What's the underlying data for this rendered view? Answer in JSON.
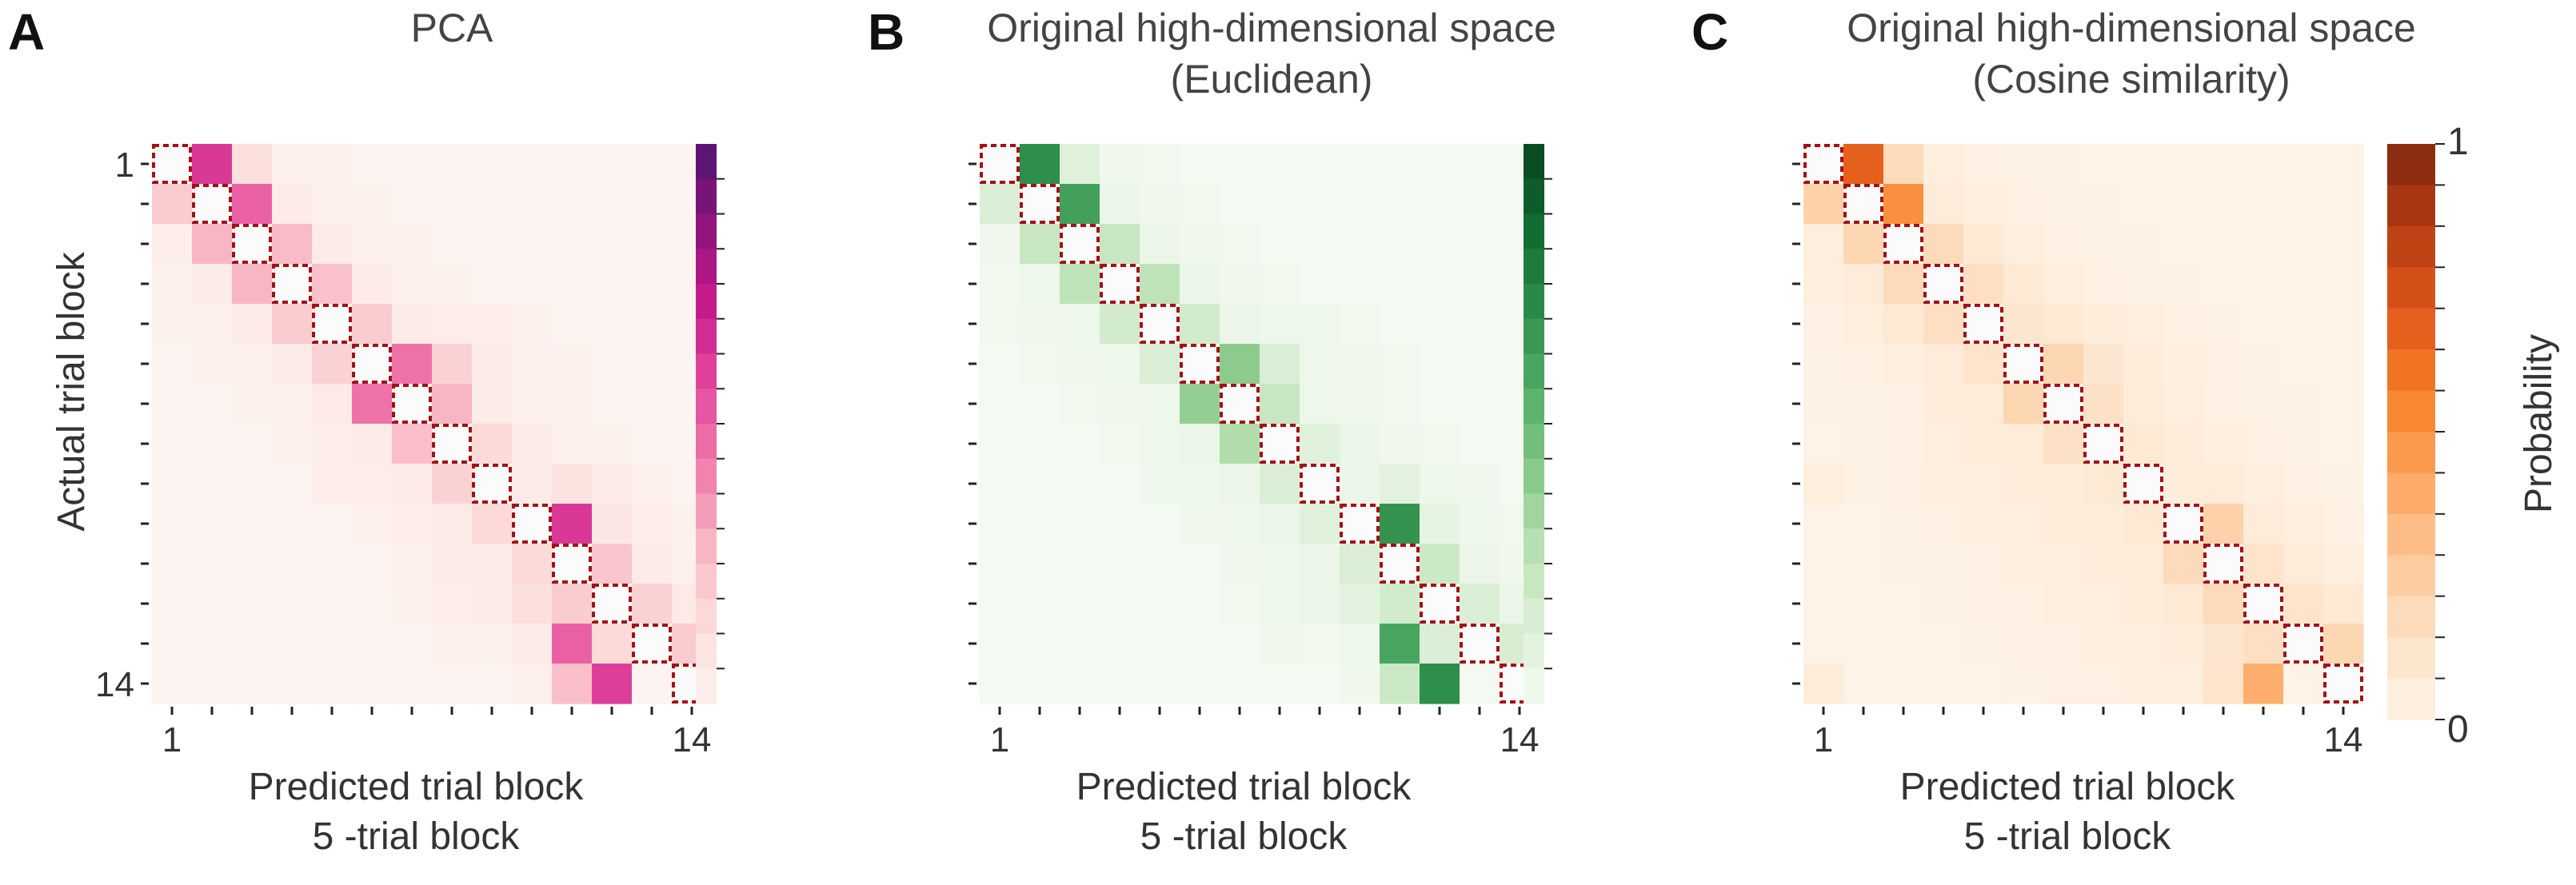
{
  "figure": {
    "ylabel": "Actual  trial block",
    "colorbar_label": "Probability",
    "colorbar_ticks": [
      "1",
      "0"
    ]
  },
  "chart_data": [
    {
      "type": "heatmap",
      "panel": "A",
      "title": [
        "PCA"
      ],
      "xlabel": [
        "Predicted trial block",
        "5 -trial block"
      ],
      "ylabel": "Actual  trial block",
      "x_tick_labels": [
        "1",
        "14"
      ],
      "y_tick_labels": [
        "1",
        "14"
      ],
      "n": 14,
      "vmin": 0,
      "vmax": 1,
      "colormap": [
        "#fdf3f0",
        "#fcdcd9",
        "#f8b4c3",
        "#f07aaa",
        "#e2479d",
        "#c71b8a",
        "#8e137c",
        "#4f1770"
      ],
      "diagonal_marker_color": "#a50f15",
      "matrix": [
        [
          0,
          0.62,
          0.12,
          0.02,
          0.01,
          0,
          0,
          0,
          0,
          0,
          0,
          0,
          0,
          0
        ],
        [
          0.2,
          0,
          0.5,
          0.05,
          0.02,
          0.01,
          0,
          0,
          0,
          0,
          0,
          0,
          0,
          0
        ],
        [
          0.03,
          0.28,
          0,
          0.26,
          0.05,
          0.02,
          0.01,
          0,
          0,
          0,
          0,
          0,
          0,
          0
        ],
        [
          0.01,
          0.05,
          0.28,
          0,
          0.24,
          0.05,
          0.02,
          0.01,
          0,
          0,
          0,
          0,
          0,
          0
        ],
        [
          0.01,
          0.02,
          0.05,
          0.2,
          0,
          0.2,
          0.05,
          0.04,
          0.04,
          0.01,
          0,
          0,
          0,
          0
        ],
        [
          0,
          0.01,
          0.02,
          0.05,
          0.18,
          0,
          0.45,
          0.18,
          0.05,
          0.02,
          0.01,
          0,
          0,
          0
        ],
        [
          0,
          0,
          0.01,
          0.02,
          0.06,
          0.45,
          0,
          0.28,
          0.05,
          0.02,
          0.01,
          0,
          0,
          0
        ],
        [
          0,
          0,
          0,
          0.01,
          0.04,
          0.05,
          0.25,
          0,
          0.15,
          0.05,
          0.02,
          0.01,
          0,
          0
        ],
        [
          0,
          0,
          0,
          0,
          0.03,
          0.04,
          0.05,
          0.18,
          0,
          0.05,
          0.1,
          0.05,
          0.02,
          0
        ],
        [
          0,
          0,
          0,
          0,
          0,
          0.02,
          0.04,
          0.05,
          0.15,
          0,
          0.62,
          0.08,
          0.03,
          0.01
        ],
        [
          0,
          0,
          0,
          0,
          0,
          0,
          0.02,
          0.05,
          0.05,
          0.15,
          0,
          0.22,
          0.05,
          0.02
        ],
        [
          0,
          0,
          0,
          0,
          0,
          0,
          0.01,
          0.04,
          0.05,
          0.12,
          0.2,
          0,
          0.18,
          0.06
        ],
        [
          0,
          0,
          0,
          0,
          0,
          0,
          0,
          0.02,
          0.01,
          0.05,
          0.5,
          0.15,
          0,
          0.2
        ],
        [
          0,
          0,
          0,
          0,
          0,
          0,
          0,
          0,
          0,
          0.02,
          0.25,
          0.6,
          0,
          0
        ]
      ]
    },
    {
      "type": "heatmap",
      "panel": "B",
      "title": [
        "Original high-dimensional space",
        "(Euclidean)"
      ],
      "xlabel": [
        "Predicted trial block",
        "5 -trial block"
      ],
      "x_tick_labels": [
        "1",
        "14"
      ],
      "n": 14,
      "vmin": 0,
      "vmax": 1,
      "colormap": [
        "#f3faf1",
        "#dcefd7",
        "#b5dfae",
        "#82c683",
        "#4fab65",
        "#2a8b48",
        "#10692f",
        "#0a441f"
      ],
      "diagonal_marker_color": "#a50f15",
      "matrix": [
        [
          0,
          0.7,
          0.12,
          0.02,
          0.01,
          0,
          0,
          0,
          0,
          0,
          0,
          0,
          0,
          0
        ],
        [
          0.15,
          0,
          0.62,
          0.05,
          0.02,
          0.01,
          0,
          0,
          0,
          0,
          0,
          0,
          0,
          0
        ],
        [
          0.02,
          0.22,
          0,
          0.22,
          0.05,
          0.02,
          0.01,
          0,
          0,
          0,
          0,
          0,
          0,
          0
        ],
        [
          0.01,
          0.04,
          0.25,
          0,
          0.25,
          0.05,
          0.02,
          0.01,
          0,
          0,
          0,
          0,
          0,
          0
        ],
        [
          0.01,
          0.02,
          0.04,
          0.18,
          0,
          0.18,
          0.05,
          0.04,
          0.04,
          0.01,
          0,
          0,
          0,
          0
        ],
        [
          0,
          0.01,
          0.02,
          0.04,
          0.15,
          0,
          0.4,
          0.15,
          0.04,
          0.02,
          0.01,
          0,
          0,
          0
        ],
        [
          0,
          0,
          0.01,
          0.02,
          0.04,
          0.38,
          0,
          0.22,
          0.04,
          0.02,
          0.01,
          0,
          0,
          0
        ],
        [
          0,
          0,
          0,
          0.01,
          0.04,
          0.05,
          0.3,
          0,
          0.12,
          0.05,
          0.02,
          0.01,
          0,
          0
        ],
        [
          0,
          0,
          0,
          0,
          0.03,
          0.04,
          0.05,
          0.15,
          0,
          0.05,
          0.1,
          0.04,
          0.02,
          0
        ],
        [
          0,
          0,
          0,
          0,
          0,
          0.02,
          0.04,
          0.05,
          0.12,
          0,
          0.68,
          0.08,
          0.03,
          0.01
        ],
        [
          0,
          0,
          0,
          0,
          0,
          0,
          0.02,
          0.04,
          0.05,
          0.15,
          0,
          0.2,
          0.05,
          0.02
        ],
        [
          0,
          0,
          0,
          0,
          0,
          0,
          0.01,
          0.04,
          0.05,
          0.1,
          0.18,
          0,
          0.15,
          0.05
        ],
        [
          0,
          0,
          0,
          0,
          0,
          0,
          0,
          0.02,
          0.01,
          0.04,
          0.6,
          0.15,
          0,
          0.16
        ],
        [
          0,
          0,
          0,
          0,
          0,
          0,
          0,
          0,
          0,
          0.02,
          0.2,
          0.7,
          0,
          0
        ]
      ]
    },
    {
      "type": "heatmap",
      "panel": "C",
      "title": [
        "Original high-dimensional space",
        "(Cosine similarity)"
      ],
      "xlabel": [
        "Predicted trial block",
        "5 -trial block"
      ],
      "x_tick_labels": [
        "1",
        "14"
      ],
      "n": 14,
      "vmin": 0,
      "vmax": 1,
      "colormap": [
        "#fef3e6",
        "#fde1c6",
        "#fdc594",
        "#fda25a",
        "#f57e26",
        "#e0561a",
        "#b43b12",
        "#7f270f"
      ],
      "diagonal_marker_color": "#a50f15",
      "matrix": [
        [
          0,
          0.68,
          0.18,
          0.04,
          0.02,
          0.01,
          0.01,
          0,
          0,
          0,
          0,
          0,
          0,
          0
        ],
        [
          0.22,
          0,
          0.5,
          0.06,
          0.03,
          0.02,
          0.01,
          0.01,
          0,
          0,
          0,
          0,
          0,
          0
        ],
        [
          0.04,
          0.2,
          0,
          0.18,
          0.08,
          0.04,
          0.02,
          0.01,
          0.01,
          0,
          0,
          0,
          0,
          0
        ],
        [
          0.03,
          0.06,
          0.18,
          0,
          0.15,
          0.08,
          0.04,
          0.02,
          0.01,
          0.01,
          0,
          0,
          0,
          0
        ],
        [
          0.02,
          0.04,
          0.08,
          0.15,
          0,
          0.1,
          0.08,
          0.05,
          0.04,
          0.02,
          0.01,
          0,
          0,
          0
        ],
        [
          0.01,
          0.02,
          0.04,
          0.06,
          0.12,
          0,
          0.2,
          0.1,
          0.05,
          0.03,
          0.02,
          0.01,
          0,
          0
        ],
        [
          0.01,
          0.01,
          0.02,
          0.05,
          0.06,
          0.2,
          0,
          0.14,
          0.06,
          0.04,
          0.02,
          0.01,
          0.01,
          0
        ],
        [
          0,
          0.01,
          0.02,
          0.04,
          0.05,
          0.06,
          0.14,
          0,
          0.08,
          0.06,
          0.03,
          0.02,
          0.01,
          0
        ],
        [
          0.04,
          0.01,
          0.02,
          0.03,
          0.04,
          0.05,
          0.06,
          0.08,
          0,
          0.05,
          0.06,
          0.04,
          0.02,
          0.01
        ],
        [
          0,
          0,
          0.01,
          0.02,
          0.03,
          0.04,
          0.05,
          0.06,
          0.08,
          0,
          0.22,
          0.06,
          0.04,
          0.02
        ],
        [
          0,
          0,
          0.01,
          0.01,
          0.02,
          0.03,
          0.04,
          0.05,
          0.06,
          0.18,
          0,
          0.12,
          0.06,
          0.04
        ],
        [
          0,
          0,
          0,
          0.01,
          0.02,
          0.02,
          0.04,
          0.04,
          0.05,
          0.08,
          0.18,
          0,
          0.12,
          0.08
        ],
        [
          0,
          0,
          0,
          0,
          0.01,
          0.02,
          0.02,
          0.03,
          0.04,
          0.05,
          0.1,
          0.15,
          0,
          0.2
        ],
        [
          0.05,
          0,
          0,
          0,
          0,
          0.01,
          0.02,
          0.02,
          0.03,
          0.04,
          0.12,
          0.38,
          0,
          0
        ]
      ]
    }
  ]
}
